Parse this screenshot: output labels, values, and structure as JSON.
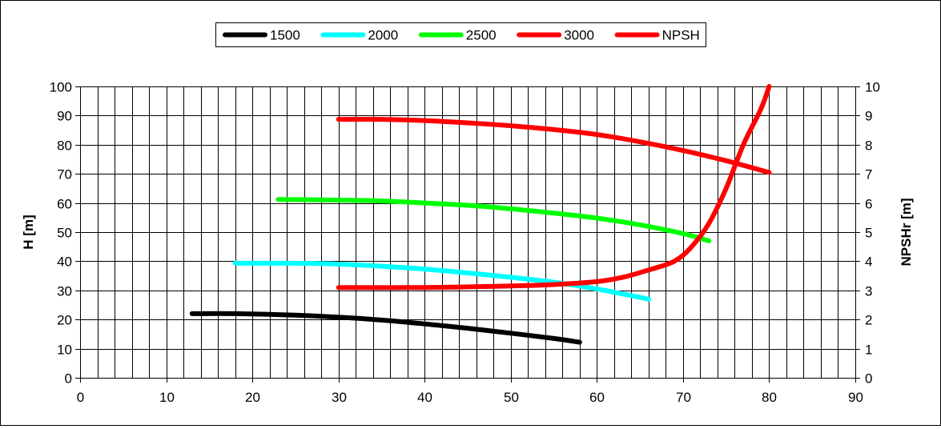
{
  "chart_data": {
    "type": "line",
    "title": "",
    "xlabel": "",
    "ylabel": "H [m]",
    "y2label": "NPSHr [m]",
    "xlim": [
      0,
      90
    ],
    "ylim": [
      0,
      100
    ],
    "y2lim": [
      0,
      10
    ],
    "x_ticks": [
      0,
      10,
      20,
      30,
      40,
      50,
      60,
      70,
      80,
      90
    ],
    "x_minor_step": 2,
    "y_ticks": [
      0,
      10,
      20,
      30,
      40,
      50,
      60,
      70,
      80,
      90,
      100
    ],
    "y2_ticks": [
      0,
      1,
      2,
      3,
      4,
      5,
      6,
      7,
      8,
      9,
      10
    ],
    "grid": true,
    "legend_position": "top-center",
    "series": [
      {
        "name": "1500",
        "color": "#000000",
        "axis": "left",
        "x": [
          13,
          18,
          25,
          30,
          35,
          40,
          45,
          50,
          55,
          58
        ],
        "y": [
          22,
          22,
          21.5,
          20.8,
          19.8,
          18.5,
          17,
          15.3,
          13.5,
          12.2
        ]
      },
      {
        "name": "2000",
        "color": "#00ffff",
        "axis": "left",
        "x": [
          18,
          25,
          30,
          35,
          40,
          45,
          50,
          55,
          60,
          66
        ],
        "y": [
          39.3,
          39.3,
          39,
          38.3,
          37.3,
          36,
          34.5,
          32.8,
          30.5,
          27
        ]
      },
      {
        "name": "2500",
        "color": "#00ff00",
        "axis": "left",
        "x": [
          23,
          30,
          35,
          40,
          45,
          50,
          55,
          60,
          65,
          70,
          73
        ],
        "y": [
          61.2,
          61,
          60.7,
          60,
          59.2,
          58,
          56.5,
          54.8,
          52.5,
          49.5,
          47
        ]
      },
      {
        "name": "3000",
        "color": "#ff0000",
        "axis": "left",
        "x": [
          30,
          35,
          40,
          45,
          50,
          55,
          60,
          65,
          70,
          75,
          80
        ],
        "y": [
          88.7,
          88.7,
          88.3,
          87.5,
          86.5,
          85.2,
          83.5,
          81,
          78,
          74.5,
          70.5
        ]
      },
      {
        "name": "NPSH",
        "color": "#ff0000",
        "axis": "right",
        "x": [
          30,
          40,
          50,
          55,
          60,
          63,
          66,
          69,
          71,
          73,
          75,
          77,
          79,
          80
        ],
        "y": [
          3.1,
          3.1,
          3.15,
          3.2,
          3.3,
          3.45,
          3.7,
          4.0,
          4.5,
          5.3,
          6.5,
          8.0,
          9.2,
          10
        ]
      }
    ]
  }
}
